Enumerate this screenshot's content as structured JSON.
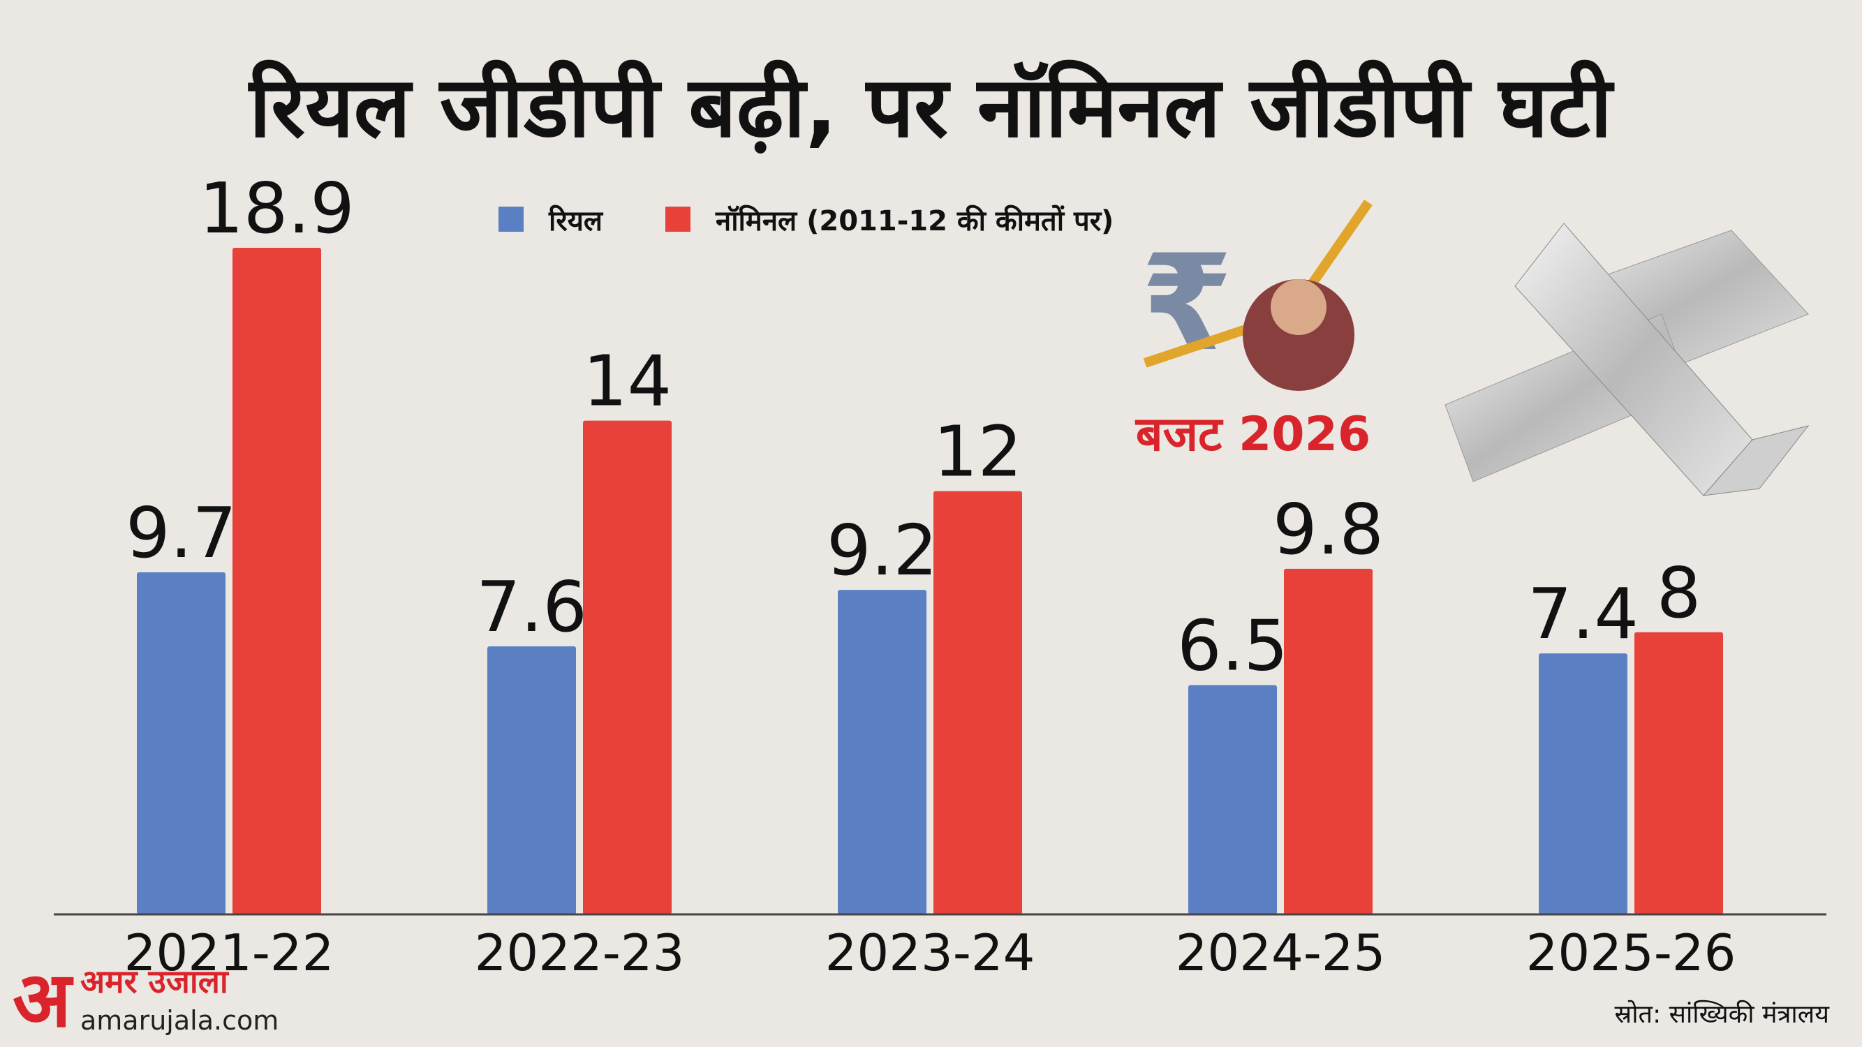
{
  "chart_data": {
    "type": "bar",
    "title": "रियल जीडीपी बढ़ी, पर नॉमिनल जीडीपी घटी",
    "categories": [
      "2021-22",
      "2022-23",
      "2023-24",
      "2024-25",
      "2025-26"
    ],
    "series": [
      {
        "name": "रियल",
        "color": "#5a7fc3",
        "values": [
          9.7,
          7.6,
          9.2,
          6.5,
          7.4
        ]
      },
      {
        "name": "नॉमिनल (2011-12 की कीमतों पर)",
        "color": "#e8413a",
        "values": [
          18.9,
          14,
          12,
          9.8,
          8
        ]
      }
    ],
    "source": "स्रोत: सांख्यिकी मंत्रालय"
  },
  "branding": {
    "logo_letter": "अ",
    "logo_name": "अमर उजाला",
    "website": "amarujala.com",
    "badge": "बजट 2026"
  }
}
